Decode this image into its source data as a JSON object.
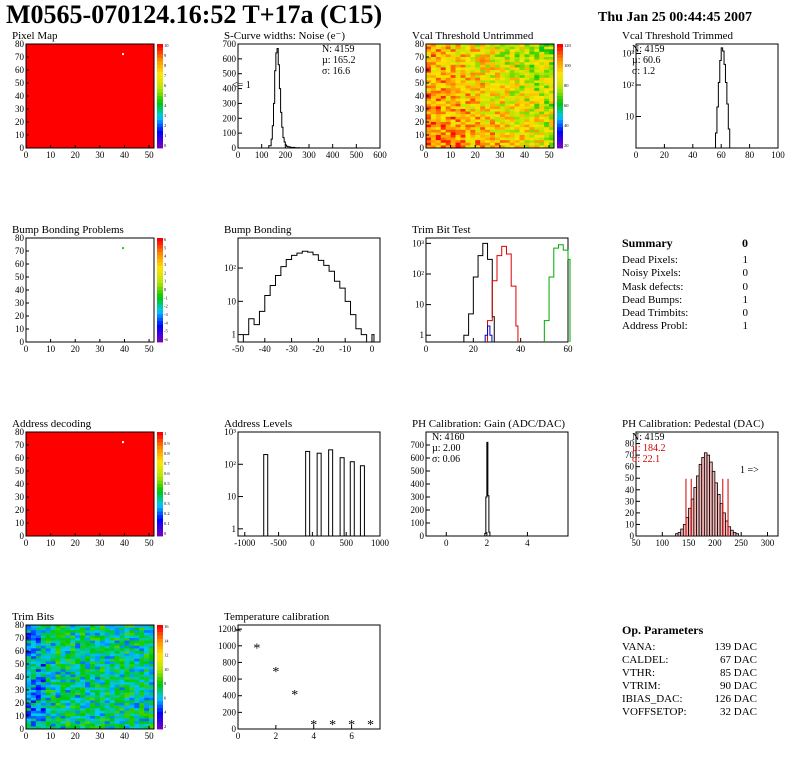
{
  "header": {
    "title": "M0565-070124.16:52 T+17a (C15)",
    "date": "Thu Jan 25 00:44:45 2007"
  },
  "panels": {
    "pixel_map": {
      "title": "Pixel Map"
    },
    "scurve": {
      "title": "S-Curve widths: Noise (e⁻)",
      "stat_n": "N: 4159",
      "stat_mu": "µ: 165.2",
      "stat_sigma": "σ: 16.6",
      "annotation": "<= 1"
    },
    "vcal_untrimmed": {
      "title": "Vcal Threshold Untrimmed"
    },
    "vcal_trimmed": {
      "title": "Vcal Threshold Trimmed",
      "stat_n": "N: 4159",
      "stat_mu": "µ: 60.6",
      "stat_sigma": "σ:  1.2"
    },
    "bump_problems": {
      "title": "Bump Bonding Problems"
    },
    "bump_bonding": {
      "title": "Bump Bonding"
    },
    "trim_bit_test": {
      "title": "Trim Bit Test"
    },
    "address_decoding": {
      "title": "Address decoding"
    },
    "address_levels": {
      "title": "Address Levels"
    },
    "ph_gain": {
      "title": "PH Calibration: Gain (ADC/DAC)",
      "stat_n": "N: 4160",
      "stat_mu": "µ: 2.00",
      "stat_sigma": "σ: 0.06"
    },
    "ph_pedestal": {
      "title": "PH Calibration: Pedestal (DAC)",
      "stat_n": "N: 4159",
      "stat_mu": "µ: 184.2",
      "stat_sigma": "σ: 22.1",
      "annotation": "1 =>"
    },
    "trim_bits": {
      "title": "Trim Bits"
    },
    "temperature": {
      "title": "Temperature calibration"
    }
  },
  "summary": {
    "title": "Summary",
    "total": "0",
    "rows": [
      {
        "label": "Dead Pixels:",
        "value": "1"
      },
      {
        "label": "Noisy Pixels:",
        "value": "0"
      },
      {
        "label": "Mask defects:",
        "value": "0"
      },
      {
        "label": "Dead Bumps:",
        "value": "1"
      },
      {
        "label": "Dead Trimbits:",
        "value": "0"
      },
      {
        "label": "Address Probl:",
        "value": "1"
      }
    ]
  },
  "op_params": {
    "title": "Op. Parameters",
    "rows": [
      {
        "label": "VANA:",
        "value": "139 DAC"
      },
      {
        "label": "CALDEL:",
        "value": "67 DAC"
      },
      {
        "label": "VTHR:",
        "value": "85 DAC"
      },
      {
        "label": "VTRIM:",
        "value": "90 DAC"
      },
      {
        "label": "IBIAS_DAC:",
        "value": "126 DAC"
      },
      {
        "label": "VOFFSETOP:",
        "value": "32 DAC"
      }
    ]
  },
  "chart_data": [
    {
      "id": "pixel_map",
      "type": "heatmap",
      "title": "Pixel Map",
      "xlim": [
        0,
        52
      ],
      "ylim": [
        0,
        80
      ],
      "xticks": [
        0,
        10,
        20,
        30,
        40,
        50
      ],
      "yticks": [
        0,
        10,
        20,
        30,
        40,
        50,
        60,
        70,
        80
      ],
      "zticks": [
        "10",
        "9",
        "8",
        "7",
        "6",
        "5",
        "4",
        "3",
        "2",
        "1",
        "0"
      ],
      "fill": "#ff0000",
      "marks": [
        {
          "x": 39,
          "y": 73,
          "color": "#ffffff"
        }
      ]
    },
    {
      "id": "scurve",
      "type": "line",
      "title": "S-Curve widths: Noise (e⁻)",
      "xlim": [
        0,
        600
      ],
      "ylim": [
        0,
        700
      ],
      "xticks": [
        0,
        100,
        200,
        300,
        400,
        500,
        600
      ],
      "yticks": [
        0,
        100,
        200,
        300,
        400,
        500,
        600,
        700
      ],
      "x": [
        120,
        130,
        140,
        145,
        150,
        155,
        160,
        165,
        170,
        175,
        180,
        185,
        190,
        195,
        200,
        205,
        210,
        220,
        240,
        260,
        280,
        300
      ],
      "y": [
        0,
        15,
        60,
        150,
        300,
        520,
        640,
        670,
        560,
        400,
        240,
        140,
        70,
        40,
        20,
        12,
        8,
        4,
        2,
        1,
        1,
        0
      ]
    },
    {
      "id": "vcal_untrimmed",
      "type": "heatmap",
      "title": "Vcal Threshold Untrimmed",
      "xlim": [
        0,
        52
      ],
      "ylim": [
        0,
        80
      ],
      "xticks": [
        0,
        10,
        20,
        30,
        40,
        50
      ],
      "yticks": [
        0,
        10,
        20,
        30,
        40,
        50,
        60,
        70,
        80
      ],
      "zticks": [
        "120",
        "100",
        "80",
        "60",
        "40",
        "20"
      ]
    },
    {
      "id": "vcal_trimmed",
      "type": "line",
      "title": "Vcal Threshold Trimmed",
      "log": true,
      "xlim": [
        0,
        100
      ],
      "ylim": [
        1,
        2000
      ],
      "xticks": [
        0,
        20,
        40,
        60,
        80,
        100
      ],
      "yticks": [
        "10",
        "10²",
        "10³"
      ],
      "x": [
        56,
        57,
        58,
        59,
        60,
        61,
        62,
        63,
        64,
        65,
        66
      ],
      "y": [
        3,
        20,
        120,
        600,
        1500,
        1200,
        450,
        120,
        25,
        4,
        1
      ]
    },
    {
      "id": "bump_problems",
      "type": "heatmap",
      "title": "Bump Bonding Problems",
      "xlim": [
        0,
        52
      ],
      "ylim": [
        0,
        80
      ],
      "xticks": [
        0,
        10,
        20,
        30,
        40,
        50
      ],
      "yticks": [
        0,
        10,
        20,
        30,
        40,
        50,
        60,
        70,
        80
      ],
      "zticks": [
        "6",
        "5",
        "4",
        "3",
        "2",
        "1",
        "0",
        "-1",
        "-2",
        "-3",
        "-4",
        "-5",
        "-6"
      ],
      "fill": "#ffffff",
      "marks": [
        {
          "x": 39,
          "y": 73,
          "color": "#22cc22"
        }
      ]
    },
    {
      "id": "bump_bonding",
      "type": "line",
      "title": "Bump Bonding",
      "log": true,
      "xlim": [
        -50,
        3
      ],
      "ylim": [
        0.6,
        800
      ],
      "xticks": [
        -50,
        -40,
        -30,
        -20,
        -10,
        0
      ],
      "yticks": [
        "1",
        "10",
        "10²"
      ],
      "x": [
        -48,
        -46,
        -44,
        -42,
        -40,
        -38,
        -36,
        -34,
        -32,
        -30,
        -28,
        -26,
        -24,
        -22,
        -20,
        -18,
        -16,
        -14,
        -12,
        -10,
        -8,
        -6,
        -4,
        -2,
        0
      ],
      "y": [
        1,
        3,
        2,
        5,
        15,
        30,
        60,
        110,
        180,
        240,
        280,
        320,
        300,
        250,
        170,
        120,
        80,
        40,
        25,
        10,
        4,
        1.5,
        1,
        0,
        1
      ]
    },
    {
      "id": "trim_bit_test",
      "type": "line",
      "title": "Trim Bit Test",
      "log": true,
      "xlim": [
        0,
        60
      ],
      "ylim": [
        0.6,
        1500
      ],
      "xticks": [
        0,
        20,
        40,
        60
      ],
      "yticks": [
        "1",
        "10",
        "10²",
        "10³"
      ],
      "series": [
        {
          "color": "#000000",
          "x": [
            16,
            18,
            20,
            22,
            24,
            26,
            28
          ],
          "y": [
            1,
            5,
            80,
            400,
            1000,
            300,
            4
          ]
        },
        {
          "color": "#dd0000",
          "x": [
            26,
            28,
            30,
            32,
            34,
            36,
            38
          ],
          "y": [
            3,
            60,
            400,
            800,
            450,
            40,
            2
          ]
        },
        {
          "color": "#00aa00",
          "x": [
            50,
            52,
            54,
            56,
            58,
            60
          ],
          "y": [
            3,
            80,
            700,
            900,
            600,
            300
          ]
        },
        {
          "color": "#0000cc",
          "x": [
            25,
            26,
            27
          ],
          "y": [
            1,
            2,
            1
          ]
        }
      ]
    },
    {
      "id": "address_decoding",
      "type": "heatmap",
      "title": "Address decoding",
      "xlim": [
        0,
        52
      ],
      "ylim": [
        0,
        80
      ],
      "xticks": [
        0,
        10,
        20,
        30,
        40,
        50
      ],
      "yticks": [
        0,
        10,
        20,
        30,
        40,
        50,
        60,
        70,
        80
      ],
      "zticks": [
        "1",
        "0.9",
        "0.8",
        "0.7",
        "0.6",
        "0.5",
        "0.4",
        "0.3",
        "0.2",
        "0.1",
        "0"
      ],
      "fill": "#ff0000",
      "marks": [
        {
          "x": 39,
          "y": 73,
          "color": "#ffffff"
        }
      ]
    },
    {
      "id": "address_levels",
      "type": "bar",
      "title": "Address Levels",
      "log": true,
      "xlim": [
        -1100,
        1000
      ],
      "ylim": [
        0.6,
        1000
      ],
      "xticks": [
        -1000,
        -500,
        0,
        500,
        1000
      ],
      "yticks": [
        "1",
        "10",
        "10²",
        "10³"
      ],
      "x": [
        -690,
        -70,
        100,
        270,
        440,
        590,
        740
      ],
      "y": [
        200,
        250,
        220,
        280,
        160,
        120,
        90
      ]
    },
    {
      "id": "ph_gain",
      "type": "line",
      "title": "PH Calibration: Gain (ADC/DAC)",
      "xlim": [
        -1,
        6
      ],
      "ylim": [
        0,
        800
      ],
      "xticks": [
        0,
        2,
        4
      ],
      "yticks": [
        0,
        100,
        200,
        300,
        400,
        500,
        600,
        700
      ],
      "x": [
        1.85,
        1.9,
        1.95,
        2.0,
        2.05,
        2.1,
        2.15
      ],
      "y": [
        0,
        20,
        300,
        720,
        310,
        30,
        0
      ]
    },
    {
      "id": "ph_pedestal",
      "type": "bar",
      "title": "PH Calibration: Pedestal (DAC)",
      "xlim": [
        50,
        320
      ],
      "ylim": [
        0,
        90
      ],
      "xticks": [
        50,
        100,
        150,
        200,
        250,
        300
      ],
      "yticks": [
        0,
        10,
        20,
        30,
        40,
        50,
        60,
        70,
        80
      ],
      "x": [
        125,
        130,
        135,
        140,
        145,
        150,
        155,
        160,
        165,
        170,
        175,
        180,
        185,
        190,
        195,
        200,
        205,
        210,
        215,
        220,
        225,
        230,
        235,
        240
      ],
      "y": [
        2,
        3,
        6,
        10,
        16,
        24,
        32,
        42,
        52,
        62,
        68,
        72,
        70,
        64,
        56,
        46,
        36,
        28,
        20,
        13,
        8,
        5,
        3,
        2
      ],
      "markers": [
        145,
        155,
        215,
        225
      ]
    },
    {
      "id": "trim_bits",
      "type": "heatmap",
      "title": "Trim Bits",
      "xlim": [
        0,
        52
      ],
      "ylim": [
        0,
        80
      ],
      "xticks": [
        0,
        10,
        20,
        30,
        40,
        50
      ],
      "yticks": [
        0,
        10,
        20,
        30,
        40,
        50,
        60,
        70,
        80
      ],
      "zticks": [
        "16",
        "14",
        "12",
        "10",
        "8",
        "6",
        "4",
        "2"
      ]
    },
    {
      "id": "temperature",
      "type": "scatter",
      "title": "Temperature calibration",
      "xlim": [
        0,
        7.5
      ],
      "ylim": [
        0,
        1250
      ],
      "xticks": [
        0,
        2,
        4,
        6
      ],
      "yticks": [
        0,
        200,
        400,
        600,
        800,
        1000,
        1200
      ],
      "x": [
        0,
        1,
        2,
        3,
        4,
        5,
        6,
        7
      ],
      "y": [
        1170,
        980,
        700,
        420,
        60,
        60,
        60,
        60
      ]
    }
  ]
}
